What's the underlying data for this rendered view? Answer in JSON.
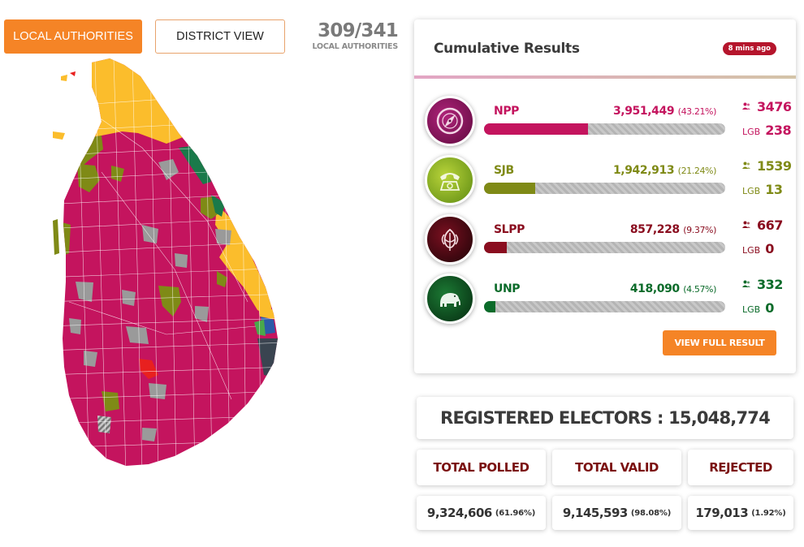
{
  "nav": {
    "local_label": "LOCAL AUTHORITIES",
    "district_label": "DISTRICT VIEW"
  },
  "counter": {
    "value": "309/341",
    "label": "LOCAL AUTHORITIES"
  },
  "results": {
    "title": "Cumulative Results",
    "updated": "8 mins ago",
    "parties": [
      {
        "name": "NPP",
        "votes": "3,951,449",
        "pct": "(43.21%)",
        "share": 43.21,
        "seats": "3476",
        "lgb_label": "LGB",
        "lgb": "238",
        "color": "#c4145e",
        "icon": "compass-icon"
      },
      {
        "name": "SJB",
        "votes": "1,942,913",
        "pct": "(21.24%)",
        "share": 21.24,
        "seats": "1539",
        "lgb_label": "LGB",
        "lgb": "13",
        "color": "#7f8a16",
        "icon": "telephone-icon"
      },
      {
        "name": "SLPP",
        "votes": "857,228",
        "pct": "(9.37%)",
        "share": 9.37,
        "seats": "667",
        "lgb_label": "LGB",
        "lgb": "0",
        "color": "#8a0d1f",
        "icon": "bud-icon"
      },
      {
        "name": "UNP",
        "votes": "418,090",
        "pct": "(4.57%)",
        "share": 4.57,
        "seats": "332",
        "lgb_label": "LGB",
        "lgb": "0",
        "color": "#0b6b2a",
        "icon": "elephant-icon"
      }
    ],
    "view_full_label": "VIEW FULL RESULT"
  },
  "summary": {
    "registered": "REGISTERED ELECTORS : 15,048,774",
    "polled_label": "TOTAL POLLED",
    "valid_label": "TOTAL VALID",
    "rejected_label": "REJECTED",
    "polled": "9,324,606",
    "polled_pct": "(61.96%)",
    "valid": "9,145,593",
    "valid_pct": "(98.08%)",
    "rejected": "179,013",
    "rejected_pct": "(1.92%)"
  },
  "colors": {
    "accent": "#f58426",
    "npp": "#c4145e",
    "sjb": "#7f8a16",
    "slpp": "#8a0d1f",
    "unp": "#0b6b2a",
    "itak": "#fbbd2c",
    "slmc": "#1a7a4a",
    "other": "#9a9a9a"
  }
}
